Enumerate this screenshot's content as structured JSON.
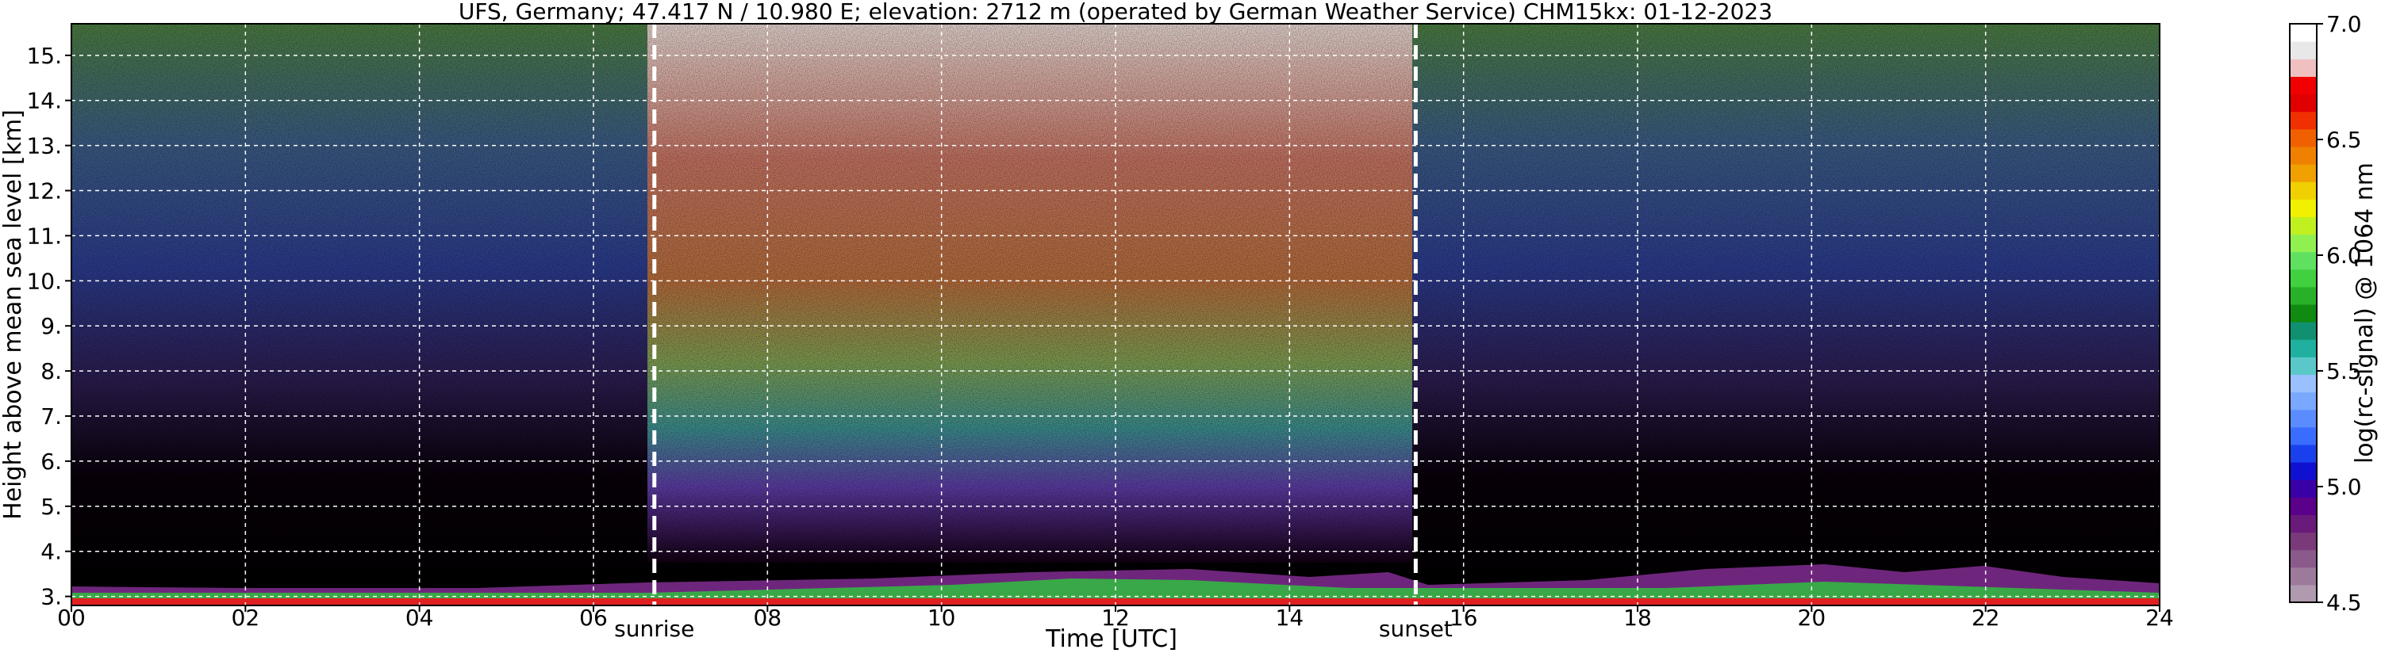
{
  "chart_data": {
    "type": "heatmap",
    "title": "UFS, Germany; 47.417 N / 10.980 E; elevation: 2712 m  (operated by German Weather Service)    CHM15kx: 01-12-2023",
    "xlabel": "Time [UTC]",
    "ylabel": "Height above mean sea level [km]",
    "xlim": [
      0,
      24
    ],
    "ylim": [
      2.8,
      15.7
    ],
    "x_ticks": [
      "00",
      "02",
      "04",
      "06",
      "08",
      "10",
      "12",
      "14",
      "16",
      "18",
      "20",
      "22",
      "24"
    ],
    "y_ticks": [
      "3.",
      "4.",
      "5.",
      "6.",
      "7.",
      "8.",
      "9.",
      "10.",
      "11.",
      "12.",
      "13.",
      "14.",
      "15."
    ],
    "grid": true,
    "events": [
      {
        "label": "sunrise",
        "time": 6.7
      },
      {
        "label": "sunset",
        "time": 15.45
      }
    ],
    "colorbar": {
      "label": "log(rc-signal) @ 1064 nm",
      "range": [
        4.5,
        7.0
      ],
      "ticks": [
        "4.5",
        "5.0",
        "5.5",
        "6.0",
        "6.5",
        "7.0"
      ],
      "colors": [
        "#b09ab0",
        "#9c7a9c",
        "#8a5a8a",
        "#7a3a7a",
        "#6a1a7a",
        "#5a008a",
        "#3a00a8",
        "#1010d0",
        "#1a40ee",
        "#3a6cff",
        "#5a8cff",
        "#7aa8ff",
        "#9ac0ff",
        "#5ac8c8",
        "#20b0a0",
        "#109070",
        "#108a10",
        "#28b028",
        "#40d040",
        "#60e060",
        "#90f050",
        "#c0f020",
        "#f0f000",
        "#f0d000",
        "#f0a000",
        "#f08000",
        "#f06000",
        "#f03000",
        "#e00000",
        "#f00000",
        "#f0c0c0",
        "#e8e8e8",
        "#ffffff"
      ]
    }
  }
}
